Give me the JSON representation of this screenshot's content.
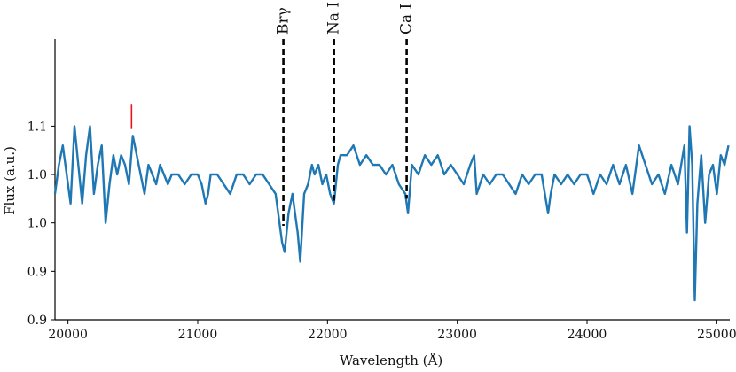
{
  "chart_data": {
    "type": "line",
    "xlabel": "Wavelength (Å)",
    "ylabel": "Flux (a.u.)",
    "xlim": [
      19900,
      25100
    ],
    "ylim": [
      0.9,
      1.19
    ],
    "x_ticks": [
      {
        "value": 20000,
        "label": "20000"
      },
      {
        "value": 21000,
        "label": "21000"
      },
      {
        "value": 22000,
        "label": "22000"
      },
      {
        "value": 23000,
        "label": "23000"
      },
      {
        "value": 24000,
        "label": "24000"
      },
      {
        "value": 25000,
        "label": "25000"
      }
    ],
    "y_ticks": [
      {
        "value": 0.9,
        "label": "0.9"
      },
      {
        "value": 0.95,
        "label": "0.9"
      },
      {
        "value": 1.0,
        "label": "1.0"
      },
      {
        "value": 1.05,
        "label": "1.0"
      },
      {
        "value": 1.1,
        "label": "1.1"
      }
    ],
    "grid": false,
    "series": [
      {
        "color": "#1f77b4",
        "x": [
          19900,
          19930,
          19960,
          19990,
          20020,
          20050,
          20080,
          20110,
          20140,
          20170,
          20200,
          20230,
          20260,
          20290,
          20320,
          20350,
          20380,
          20410,
          20440,
          20470,
          20500,
          20530,
          20560,
          20590,
          20620,
          20650,
          20680,
          20710,
          20740,
          20770,
          20800,
          20850,
          20900,
          20950,
          21000,
          21030,
          21060,
          21080,
          21100,
          21150,
          21200,
          21250,
          21300,
          21350,
          21400,
          21450,
          21500,
          21550,
          21600,
          21630,
          21650,
          21670,
          21700,
          21730,
          21750,
          21770,
          21790,
          21820,
          21850,
          21880,
          21900,
          21930,
          21960,
          21990,
          22020,
          22050,
          22080,
          22100,
          22150,
          22200,
          22250,
          22300,
          22350,
          22400,
          22450,
          22500,
          22550,
          22600,
          22620,
          22650,
          22700,
          22750,
          22800,
          22850,
          22900,
          22950,
          23000,
          23050,
          23100,
          23130,
          23150,
          23200,
          23250,
          23300,
          23350,
          23400,
          23450,
          23500,
          23550,
          23600,
          23650,
          23700,
          23720,
          23750,
          23800,
          23850,
          23900,
          23950,
          24000,
          24050,
          24100,
          24150,
          24200,
          24250,
          24300,
          24350,
          24400,
          24450,
          24500,
          24550,
          24600,
          24650,
          24700,
          24750,
          24770,
          24790,
          24810,
          24830,
          24850,
          24880,
          24910,
          24940,
          24970,
          25000,
          25030,
          25060,
          25090
        ],
        "y": [
          1.03,
          1.06,
          1.08,
          1.05,
          1.02,
          1.1,
          1.06,
          1.02,
          1.07,
          1.1,
          1.03,
          1.06,
          1.08,
          1.0,
          1.04,
          1.07,
          1.05,
          1.07,
          1.06,
          1.04,
          1.09,
          1.07,
          1.05,
          1.03,
          1.06,
          1.05,
          1.04,
          1.06,
          1.05,
          1.04,
          1.05,
          1.05,
          1.04,
          1.05,
          1.05,
          1.04,
          1.02,
          1.03,
          1.05,
          1.05,
          1.04,
          1.03,
          1.05,
          1.05,
          1.04,
          1.05,
          1.05,
          1.04,
          1.03,
          1.0,
          0.98,
          0.97,
          1.01,
          1.03,
          1.01,
          0.99,
          0.96,
          1.03,
          1.04,
          1.06,
          1.05,
          1.06,
          1.04,
          1.05,
          1.03,
          1.02,
          1.06,
          1.07,
          1.07,
          1.08,
          1.06,
          1.07,
          1.06,
          1.06,
          1.05,
          1.06,
          1.04,
          1.03,
          1.01,
          1.06,
          1.05,
          1.07,
          1.06,
          1.07,
          1.05,
          1.06,
          1.05,
          1.04,
          1.06,
          1.07,
          1.03,
          1.05,
          1.04,
          1.05,
          1.05,
          1.04,
          1.03,
          1.05,
          1.04,
          1.05,
          1.05,
          1.01,
          1.03,
          1.05,
          1.04,
          1.05,
          1.04,
          1.05,
          1.05,
          1.03,
          1.05,
          1.04,
          1.06,
          1.04,
          1.06,
          1.03,
          1.08,
          1.06,
          1.04,
          1.05,
          1.03,
          1.06,
          1.04,
          1.08,
          0.99,
          1.1,
          1.06,
          0.92,
          1.02,
          1.07,
          1.0,
          1.05,
          1.06,
          1.03,
          1.07,
          1.06,
          1.08
        ]
      }
    ],
    "annotations": [
      {
        "x": 21660,
        "y_end": 0.997,
        "label": "Brγ"
      },
      {
        "x": 22050,
        "y_end": 1.023,
        "label": "Na I"
      },
      {
        "x": 22610,
        "y_end": 1.025,
        "label": "Ca I"
      }
    ],
    "marker": {
      "x": 20490,
      "y_low": 1.097,
      "y_high": 1.123,
      "color": "#e8141b"
    }
  }
}
